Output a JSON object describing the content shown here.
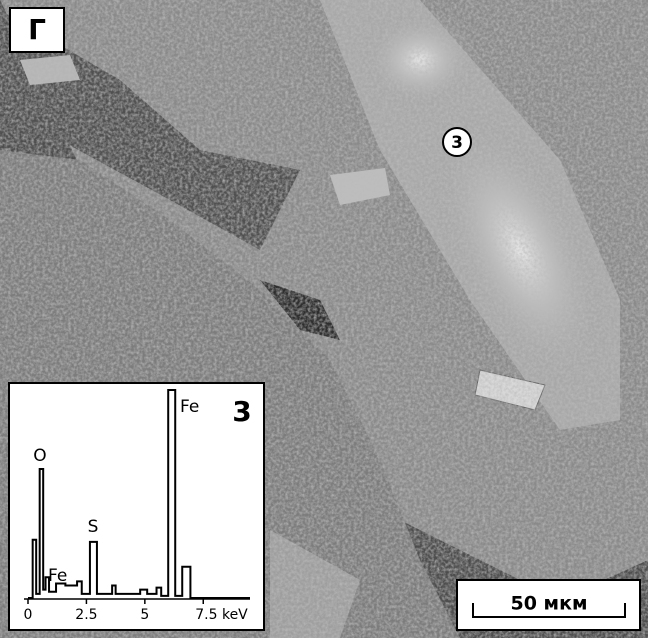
{
  "panel_label": "Г",
  "point_label": "3",
  "scale_bar": "50 мкм",
  "chart_data": {
    "type": "line",
    "title": "3",
    "x": [
      0,
      0.2,
      0.2,
      0.35,
      0.35,
      0.5,
      0.5,
      0.65,
      0.65,
      0.75,
      0.75,
      0.9,
      0.9,
      1.2,
      1.2,
      1.6,
      1.6,
      2.1,
      2.1,
      2.3,
      2.3,
      2.65,
      2.65,
      2.95,
      2.95,
      3.6,
      3.6,
      3.75,
      3.75,
      4.8,
      4.8,
      5.1,
      5.1,
      5.5,
      5.5,
      5.7,
      5.7,
      6.0,
      6.0,
      6.3,
      6.3,
      6.6,
      6.6,
      6.95,
      6.95,
      9.5
    ],
    "values": [
      0,
      0,
      28,
      28,
      2,
      2,
      62,
      62,
      4,
      4,
      10,
      10,
      3,
      3,
      7,
      7,
      6,
      6,
      8,
      8,
      2,
      2,
      27,
      27,
      2,
      2,
      6,
      6,
      2,
      2,
      4,
      4,
      2,
      2,
      5,
      5,
      1,
      1,
      100,
      100,
      1,
      1,
      15,
      15,
      0,
      0
    ],
    "color": "#000000",
    "xlim": [
      0,
      9.5
    ],
    "ylim": [
      0,
      100
    ],
    "xticks": [
      0,
      2.5,
      5,
      {
        "value": 7.5,
        "label": "7.5 keV"
      }
    ],
    "annotations": [
      "O",
      "Fe",
      "S",
      "Fe"
    ]
  }
}
